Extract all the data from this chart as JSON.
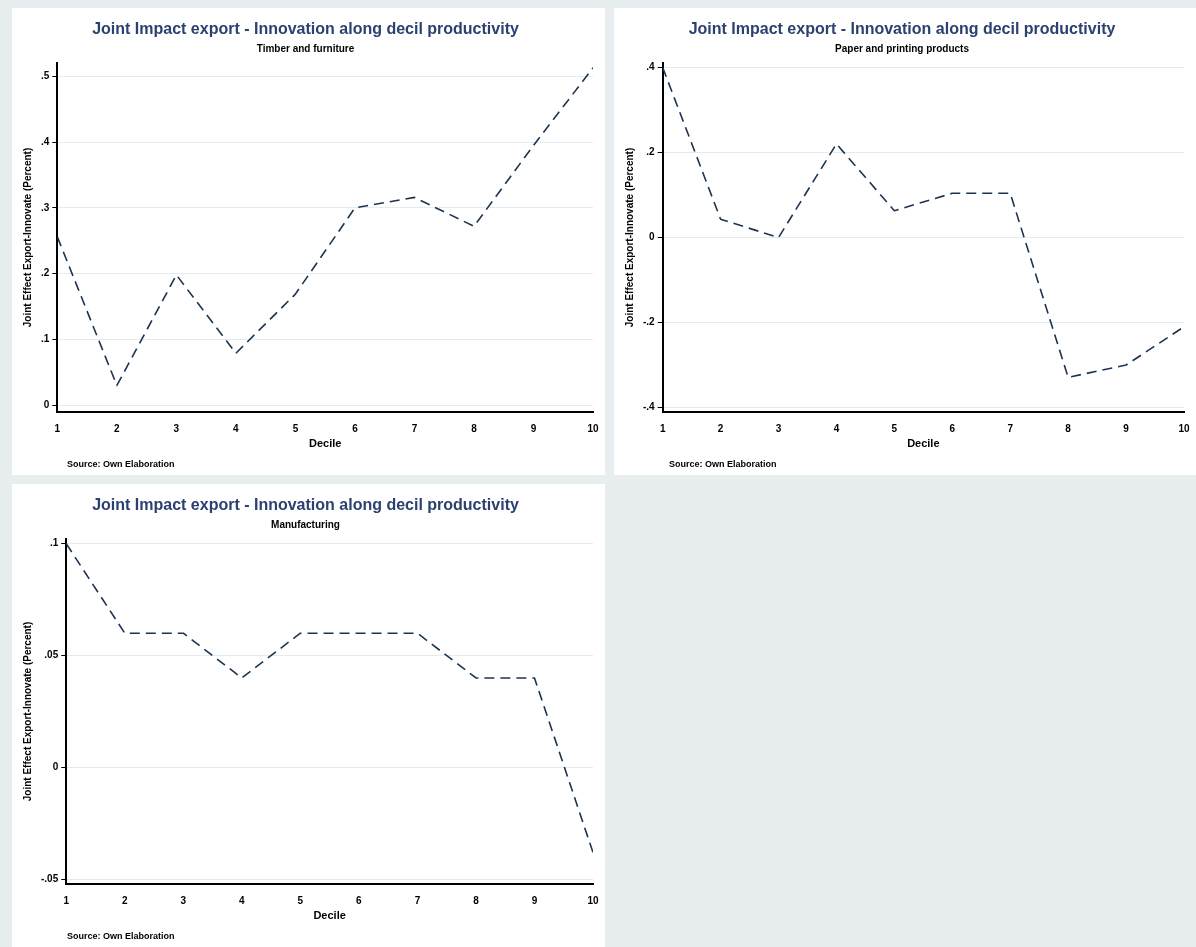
{
  "chart_data": [
    {
      "type": "line",
      "title": "Joint Impact export - Innovation along decil productivity",
      "subtitle": "Timber and furniture",
      "xlabel": "Decile",
      "ylabel": "Joint Effect Export-Innovate (Percent)",
      "annotations": [
        "Source: Own Elaboration"
      ],
      "x": [
        1,
        2,
        3,
        4,
        5,
        6,
        7,
        8,
        9,
        10
      ],
      "series": [
        {
          "color": "#1c3450",
          "values": [
            0.256,
            0.03,
            0.198,
            0.079,
            0.169,
            0.3,
            0.316,
            0.272,
            0.395,
            0.513
          ]
        }
      ],
      "xlim": [
        1,
        10
      ],
      "xticks": [
        1,
        2,
        3,
        4,
        5,
        6,
        7,
        8,
        9,
        10
      ],
      "ylim": [
        -0.01,
        0.52
      ],
      "yticks": [
        {
          "value": 0,
          "label": "0"
        },
        {
          "value": 0.1,
          "label": ".1"
        },
        {
          "value": 0.2,
          "label": ".2"
        },
        {
          "value": 0.3,
          "label": ".3"
        },
        {
          "value": 0.4,
          "label": ".4"
        },
        {
          "value": 0.5,
          "label": ".5"
        }
      ],
      "grid": "y",
      "line_style": "dashed",
      "marker": "none"
    },
    {
      "type": "line",
      "title": "Joint Impact export - Innovation along decil productivity",
      "subtitle": "Paper and printing products",
      "xlabel": "Decile",
      "ylabel": "Joint Effect Export-Innovate (Percent)",
      "annotations": [
        "Source: Own Elaboration"
      ],
      "x": [
        1,
        2,
        3,
        4,
        5,
        6,
        7,
        8,
        9,
        10
      ],
      "series": [
        {
          "color": "#1c3450",
          "values": [
            0.4,
            0.043,
            0,
            0.22,
            0.063,
            0.104,
            0.104,
            -0.329,
            -0.3,
            -0.21
          ]
        }
      ],
      "xlim": [
        1,
        10
      ],
      "xticks": [
        1,
        2,
        3,
        4,
        5,
        6,
        7,
        8,
        9,
        10
      ],
      "ylim": [
        -0.41,
        0.41
      ],
      "yticks": [
        {
          "value": -0.4,
          "label": "-.4"
        },
        {
          "value": -0.2,
          "label": "-.2"
        },
        {
          "value": 0,
          "label": "0"
        },
        {
          "value": 0.2,
          "label": ".2"
        },
        {
          "value": 0.4,
          "label": ".4"
        }
      ],
      "grid": "y",
      "line_style": "dashed",
      "marker": "none"
    },
    {
      "type": "line",
      "title": "Joint Impact export - Innovation along decil productivity",
      "subtitle": "Manufacturing",
      "xlabel": "Decile",
      "ylabel": "Joint Effect Export-Innovate (Percent)",
      "annotations": [
        "Source: Own Elaboration"
      ],
      "x": [
        1,
        2,
        3,
        4,
        5,
        6,
        7,
        8,
        9,
        10
      ],
      "series": [
        {
          "color": "#1c3450",
          "values": [
            0.1,
            0.06,
            0.06,
            0.04,
            0.06,
            0.06,
            0.06,
            0.04,
            0.04,
            -0.038
          ]
        }
      ],
      "xlim": [
        1,
        10
      ],
      "xticks": [
        1,
        2,
        3,
        4,
        5,
        6,
        7,
        8,
        9,
        10
      ],
      "ylim": [
        -0.052,
        0.102
      ],
      "yticks": [
        {
          "value": -0.05,
          "label": "-.05"
        },
        {
          "value": 0,
          "label": "0"
        },
        {
          "value": 0.05,
          "label": ".05"
        },
        {
          "value": 0.1,
          "label": ".1"
        }
      ],
      "grid": "y",
      "line_style": "dashed",
      "marker": "none"
    }
  ]
}
